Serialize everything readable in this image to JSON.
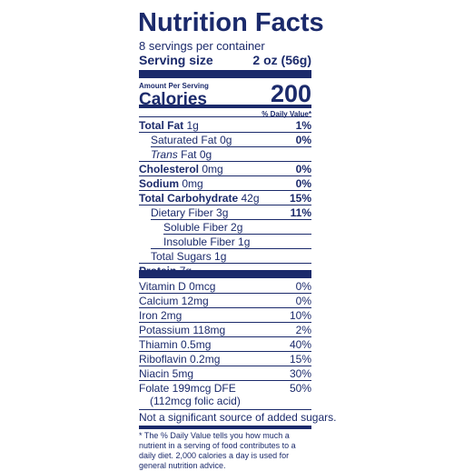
{
  "title": "Nutrition Facts",
  "servings": "8 servings per container",
  "serving_size_label": "Serving size",
  "serving_size_value": "2 oz (56g)",
  "amount_per_serving": "Amount Per Serving",
  "calories_label": "Calories",
  "calories_value": "200",
  "dv_header": "% Daily Value*",
  "nutrients": {
    "total_fat": {
      "name": "Total Fat",
      "amount": "1g",
      "dv": "1%"
    },
    "sat_fat": {
      "name": "Saturated Fat",
      "amount": "0g",
      "dv": "0%"
    },
    "trans_fat": {
      "name": "Trans",
      "amount": "Fat 0g"
    },
    "cholesterol": {
      "name": "Cholesterol",
      "amount": "0mg",
      "dv": "0%"
    },
    "sodium": {
      "name": "Sodium",
      "amount": "0mg",
      "dv": "0%"
    },
    "total_carb": {
      "name": "Total Carbohydrate",
      "amount": "42g",
      "dv": "15%"
    },
    "fiber": {
      "name": "Dietary Fiber 3g",
      "dv": "11%"
    },
    "soluble": {
      "name": "Soluble Fiber 2g"
    },
    "insoluble": {
      "name": "Insoluble Fiber 1g"
    },
    "sugars": {
      "name": "Total Sugars 1g"
    },
    "protein": {
      "name": "Protein",
      "amount": "7g"
    }
  },
  "vitamins": [
    {
      "name": "Vitamin D 0mcg",
      "dv": "0%"
    },
    {
      "name": "Calcium 12mg",
      "dv": "0%"
    },
    {
      "name": "Iron 2mg",
      "dv": "10%"
    },
    {
      "name": "Potassium 118mg",
      "dv": "2%"
    },
    {
      "name": "Thiamin 0.5mg",
      "dv": "40%"
    },
    {
      "name": "Riboflavin 0.2mg",
      "dv": "15%"
    },
    {
      "name": "Niacin 5mg",
      "dv": "30%"
    },
    {
      "name": "Folate 199mcg DFE",
      "dv": "50%"
    }
  ],
  "folate_note": "(112mcg folic acid)",
  "added_sugars_note": "Not a significant source of added sugars.",
  "footnote": "* The % Daily Value tells you how much a nutrient in a serving of food contributes to a daily diet. 2,000 calories a day is used for general nutrition advice.",
  "colors": {
    "ink": "#1b2a6b",
    "background": "#ffffff"
  }
}
